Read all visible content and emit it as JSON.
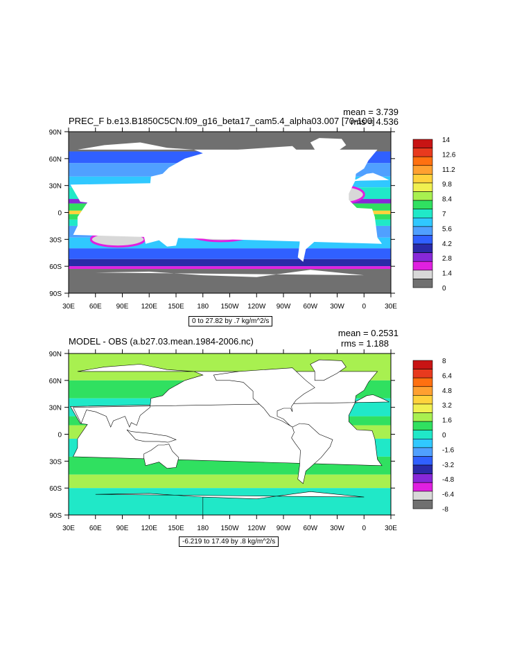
{
  "panels": [
    {
      "title": "PREC_F b.e13.B1850C5CN.f09_g16_beta17_cam5.4_alpha03.007 [70-100]",
      "mean": "mean = 3.739",
      "rms": "rms = 4.536",
      "caption": "0 to 27.82 by .7 kg/m^2/s",
      "colorbar_labels": [
        "14",
        "12.6",
        "11.2",
        "9.8",
        "8.4",
        "7",
        "5.6",
        "4.2",
        "2.8",
        "1.4",
        "0"
      ],
      "colorbar_colors": [
        "#c81414",
        "#e83a1e",
        "#ff7010",
        "#ffa030",
        "#ffd23c",
        "#f0f050",
        "#a8f050",
        "#30e060",
        "#20e8c8",
        "#30c8ff",
        "#50a0ff",
        "#3060ff",
        "#2a2aa8",
        "#8828d8",
        "#e020e0",
        "#d8d8d8",
        "#707070"
      ]
    },
    {
      "title": "MODEL - OBS (a.b27.03.mean.1984-2006.nc)",
      "mean": "mean = 0.2531",
      "rms": "rms = 1.188",
      "caption": "-6.219 to 17.49 by .8 kg/m^2/s",
      "colorbar_labels": [
        "8",
        "6.4",
        "4.8",
        "3.2",
        "1.6",
        "0",
        "-1.6",
        "-3.2",
        "-4.8",
        "-6.4",
        "-8"
      ],
      "colorbar_colors": [
        "#c81414",
        "#e83a1e",
        "#ff7010",
        "#ffa030",
        "#ffd23c",
        "#f0f050",
        "#a8f050",
        "#30e060",
        "#20e8c8",
        "#30c8ff",
        "#50a0ff",
        "#3060ff",
        "#2a2aa8",
        "#8828d8",
        "#e020e0",
        "#d8d8d8",
        "#707070"
      ]
    }
  ],
  "chart_data": [
    {
      "type": "heatmap",
      "title": "PREC_F b.e13.B1850C5CN.f09_g16_beta17_cam5.4_alpha03.007 [70-100]",
      "x_tick_labels": [
        "30E",
        "60E",
        "90E",
        "120E",
        "150E",
        "180",
        "150W",
        "120W",
        "90W",
        "60W",
        "30W",
        "0",
        "30E"
      ],
      "y_tick_labels": [
        "90N",
        "60N",
        "30N",
        "0",
        "30S",
        "60S",
        "90S"
      ],
      "lon_range": [
        30,
        390
      ],
      "lat_range": [
        -90,
        90
      ],
      "color_levels": [
        0,
        1.4,
        2.8,
        4.2,
        5.6,
        7,
        8.4,
        9.8,
        11.2,
        12.6,
        14
      ],
      "mean": 3.739,
      "rms": 4.536,
      "units": "kg/m^2/s"
    },
    {
      "type": "heatmap",
      "title": "MODEL - OBS (a.b27.03.mean.1984-2006.nc)",
      "x_tick_labels": [
        "30E",
        "60E",
        "90E",
        "120E",
        "150E",
        "180",
        "150W",
        "120W",
        "90W",
        "60W",
        "30W",
        "0",
        "30E"
      ],
      "y_tick_labels": [
        "90N",
        "60N",
        "30N",
        "0",
        "30S",
        "60S",
        "90S"
      ],
      "lon_range": [
        30,
        390
      ],
      "lat_range": [
        -90,
        90
      ],
      "color_levels": [
        -8,
        -6.4,
        -4.8,
        -3.2,
        -1.6,
        0,
        1.6,
        3.2,
        4.8,
        6.4,
        8
      ],
      "mean": 0.2531,
      "rms": 1.188,
      "units": "kg/m^2/s"
    }
  ]
}
